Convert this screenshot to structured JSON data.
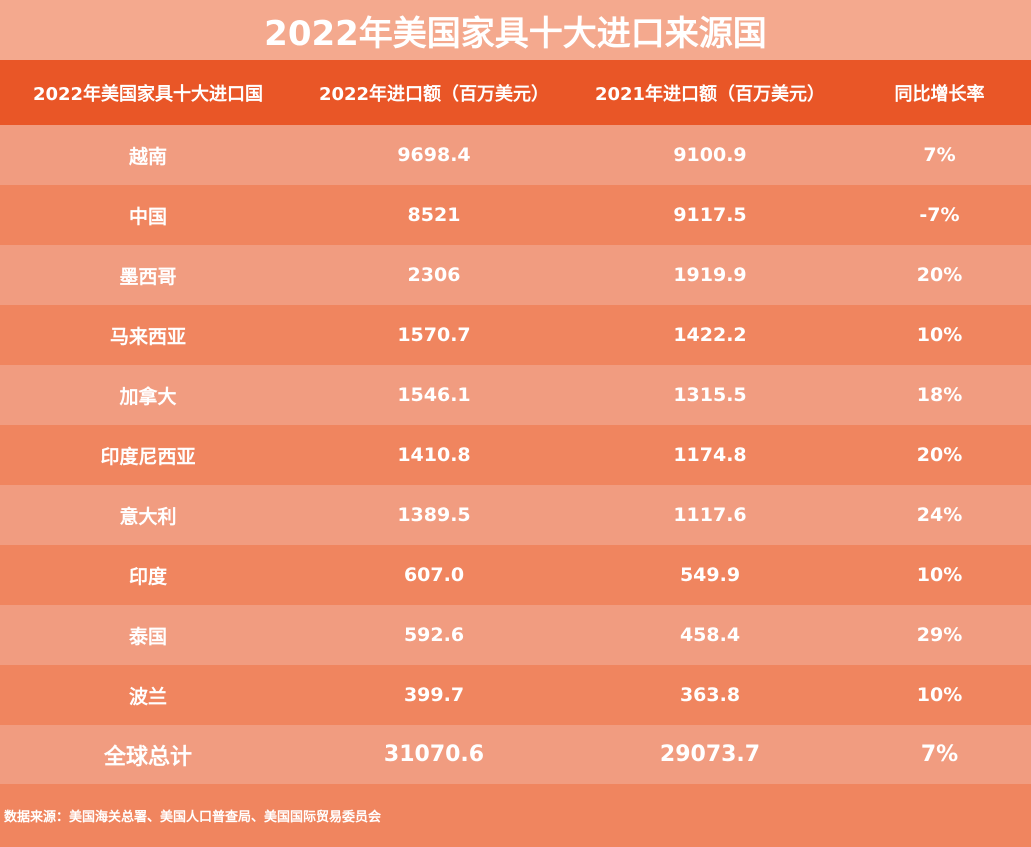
{
  "title": "2022年美国家具十大进口来源国",
  "table": {
    "headers": [
      "2022年美国家具十大进口国",
      "2022年进口额（百万美元）",
      "2021年进口额（百万美元）",
      "同比增长率"
    ],
    "rows": [
      {
        "country": "越南",
        "y2022": "9698.4",
        "y2021": "9100.9",
        "growth": "7%"
      },
      {
        "country": "中国",
        "y2022": "8521",
        "y2021": "9117.5",
        "growth": "-7%"
      },
      {
        "country": "墨西哥",
        "y2022": "2306",
        "y2021": "1919.9",
        "growth": "20%"
      },
      {
        "country": "马来西亚",
        "y2022": "1570.7",
        "y2021": "1422.2",
        "growth": "10%"
      },
      {
        "country": "加拿大",
        "y2022": "1546.1",
        "y2021": "1315.5",
        "growth": "18%"
      },
      {
        "country": "印度尼西亚",
        "y2022": "1410.8",
        "y2021": "1174.8",
        "growth": "20%"
      },
      {
        "country": "意大利",
        "y2022": "1389.5",
        "y2021": "1117.6",
        "growth": "24%"
      },
      {
        "country": "印度",
        "y2022": "607.0",
        "y2021": "549.9",
        "growth": "10%"
      },
      {
        "country": "泰国",
        "y2022": "592.6",
        "y2021": "458.4",
        "growth": "29%"
      },
      {
        "country": "波兰",
        "y2022": "399.7",
        "y2021": "363.8",
        "growth": "10%"
      }
    ],
    "total": {
      "country": "全球总计",
      "y2022": "31070.6",
      "y2021": "29073.7",
      "growth": "7%"
    }
  },
  "footer": {
    "source": "数据来源：美国海关总署、美国人口普查局、美国国际贸易委员会"
  },
  "colors": {
    "title_bg": "#f4a98e",
    "header_bg": "#e95627",
    "row_light": "#f19c80",
    "row_dark": "#f0855f",
    "text": "#ffffff"
  },
  "chart_data": {
    "type": "table",
    "title": "2022年美国家具十大进口来源国",
    "columns": [
      "2022年美国家具十大进口国",
      "2022年进口额（百万美元）",
      "2021年进口额（百万美元）",
      "同比增长率"
    ],
    "categories": [
      "越南",
      "中国",
      "墨西哥",
      "马来西亚",
      "加拿大",
      "印度尼西亚",
      "意大利",
      "印度",
      "泰国",
      "波兰",
      "全球总计"
    ],
    "series": [
      {
        "name": "2022年进口额（百万美元）",
        "values": [
          9698.4,
          8521,
          2306,
          1570.7,
          1546.1,
          1410.8,
          1389.5,
          607.0,
          592.6,
          399.7,
          31070.6
        ]
      },
      {
        "name": "2021年进口额（百万美元）",
        "values": [
          9100.9,
          9117.5,
          1919.9,
          1422.2,
          1315.5,
          1174.8,
          1117.6,
          549.9,
          458.4,
          363.8,
          29073.7
        ]
      },
      {
        "name": "同比增长率",
        "values": [
          "7%",
          "-7%",
          "20%",
          "10%",
          "18%",
          "20%",
          "24%",
          "10%",
          "29%",
          "10%",
          "7%"
        ]
      }
    ],
    "annotations": [
      "数据来源：美国海关总署、美国人口普查局、美国国际贸易委员会"
    ]
  }
}
